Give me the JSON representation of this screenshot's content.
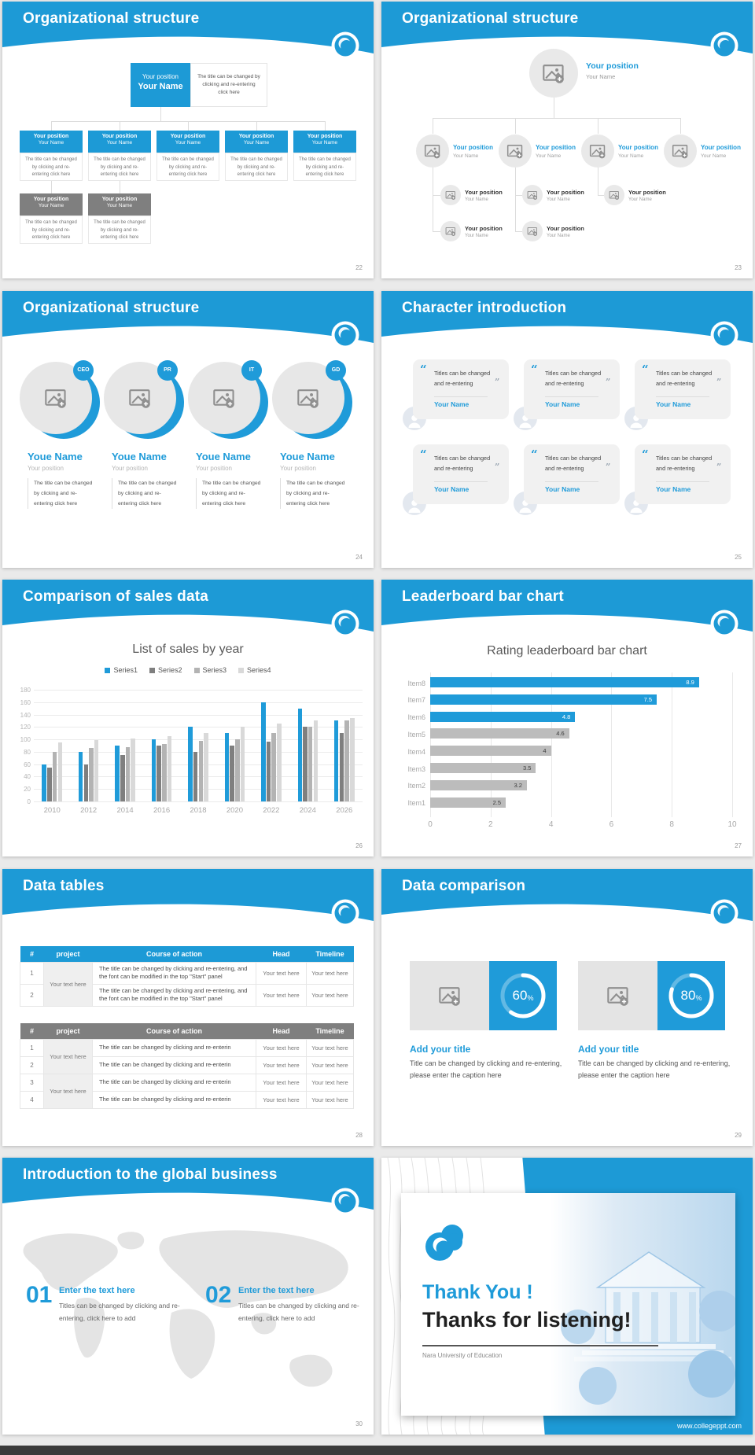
{
  "theme": {
    "blue": "#1d9ad6",
    "chart_blue": "#1f9bd9",
    "gray_box": "#7f7f7f",
    "page_bg": "#eaeaea",
    "footer_bar": "#3b3b3b"
  },
  "icons": {
    "logo-icon": "blue wave swirl in white circle",
    "image-placeholder-icon": "picture with plus badge",
    "person-icon": "user silhouette",
    "quote-open-icon": "“",
    "quote-close-icon": "”"
  },
  "slides": {
    "org_boxes": {
      "title": "Organizational structure",
      "page": "22",
      "root": {
        "position": "Your position",
        "name": "Your Name"
      },
      "root_note": "The title can be changed by clicking and re-entering click here",
      "note": "The title can be changed by clicking and re-entering click here",
      "level1": [
        {
          "position": "Your position",
          "name": "Your Name"
        },
        {
          "position": "Your position",
          "name": "Your Name"
        },
        {
          "position": "Your position",
          "name": "Your Name"
        },
        {
          "position": "Your position",
          "name": "Your Name"
        },
        {
          "position": "Your position",
          "name": "Your Name"
        }
      ],
      "level2": [
        {
          "position": "Your position",
          "name": "Your Name"
        },
        {
          "position": "Your position",
          "name": "Your Name"
        }
      ]
    },
    "org_photos": {
      "title": "Organizational structure",
      "page": "23",
      "root": {
        "position": "Your position",
        "name": "Your Name"
      },
      "level1": [
        {
          "position": "Your position",
          "name": "Your Name"
        },
        {
          "position": "Your position",
          "name": "Your Name"
        },
        {
          "position": "Your position",
          "name": "Your Name"
        },
        {
          "position": "Your position",
          "name": "Your Name"
        }
      ],
      "level2": [
        {
          "position": "Your position",
          "name": "Your Name"
        },
        {
          "position": "Your position",
          "name": "Your Name"
        },
        {
          "position": "Your position",
          "name": "Your Name"
        }
      ],
      "level3": [
        {
          "position": "Your position",
          "name": "Your Name"
        },
        {
          "position": "Your position",
          "name": "Your Name"
        }
      ]
    },
    "org_team": {
      "title": "Organizational structure",
      "page": "24",
      "note": "The title can be changed by clicking and re-entering click here",
      "members": [
        {
          "badge": "CEO",
          "name": "Youe Name",
          "position": "Your position"
        },
        {
          "badge": "PR",
          "name": "Youe Name",
          "position": "Your position"
        },
        {
          "badge": "IT",
          "name": "Youe Name",
          "position": "Your position"
        },
        {
          "badge": "GD",
          "name": "Youe Name",
          "position": "Your position"
        }
      ]
    },
    "characters": {
      "title": "Character introduction",
      "page": "25",
      "quote": "Titles can be changed and re-entering",
      "cards": [
        {
          "name": "Your Name"
        },
        {
          "name": "Your Name"
        },
        {
          "name": "Your Name"
        },
        {
          "name": "Your Name"
        },
        {
          "name": "Your Name"
        },
        {
          "name": "Your Name"
        }
      ]
    },
    "sales": {
      "title": "Comparison of sales data",
      "page": "26"
    },
    "leaderboard": {
      "title": "Leaderboard bar chart",
      "page": "27"
    },
    "tables": {
      "title": "Data tables",
      "page": "28",
      "columns": [
        "#",
        "project",
        "Course of action",
        "Head",
        "Timeline"
      ],
      "table1": {
        "groups": [
          {
            "project": "Your text here",
            "rows": [
              {
                "num": "1",
                "course": "The title can be changed by clicking and re-entering, and the font can be modified in the top \"Start\" panel",
                "head": "Your text here",
                "timeline": "Your text here"
              },
              {
                "num": "2",
                "course": "The title can be changed by clicking and re-entering, and the font can be modified in the top \"Start\" panel",
                "head": "Your text here",
                "timeline": "Your text here"
              }
            ]
          }
        ]
      },
      "table2": {
        "groups": [
          {
            "project": "Your text here",
            "rows": [
              {
                "num": "1",
                "course": "The title can be changed by clicking and re-enterin",
                "head": "Your text here",
                "timeline": "Your text here"
              },
              {
                "num": "2",
                "course": "The title can be changed by clicking and re-enterin",
                "head": "Your text here",
                "timeline": "Your text here"
              }
            ]
          },
          {
            "project": "Your text here",
            "rows": [
              {
                "num": "3",
                "course": "The title can be changed by clicking and re-enterin",
                "head": "Your text here",
                "timeline": "Your text here"
              },
              {
                "num": "4",
                "course": "The title can be changed by clicking and re-enterin",
                "head": "Your text here",
                "timeline": "Your text here"
              }
            ]
          }
        ]
      }
    },
    "comparison": {
      "title": "Data comparison",
      "page": "29",
      "cards": [
        {
          "percent": 60,
          "suffix": "%",
          "title": "Add your title",
          "caption": "Title can be changed by clicking and re-entering, please enter the caption here"
        },
        {
          "percent": 80,
          "suffix": "%",
          "title": "Add your title",
          "caption": "Title can be changed by clicking and re-entering, please enter the caption here"
        }
      ]
    },
    "global": {
      "title": "Introduction to the global business",
      "page": "30",
      "items": [
        {
          "num": "01",
          "title": "Enter the text here",
          "text": "Titles can be changed by clicking and re-entering, click here to add"
        },
        {
          "num": "02",
          "title": "Enter the text here",
          "text": "Titles can be changed by clicking and re-entering, click here to add"
        }
      ]
    },
    "thanks": {
      "heading_blue": "Thank You !",
      "heading_dark": "Thanks for listening!",
      "subtitle": "Nara University of Education",
      "url": "www.collegeppt.com"
    }
  },
  "chart_data": [
    {
      "type": "bar",
      "title": "List of sales by year",
      "categories": [
        "2010",
        "2012",
        "2014",
        "2016",
        "2018",
        "2020",
        "2022",
        "2024",
        "2026"
      ],
      "series": [
        {
          "name": "Series1",
          "color": "#1f9bd9",
          "values": [
            60,
            80,
            90,
            100,
            120,
            110,
            160,
            150,
            130
          ]
        },
        {
          "name": "Series2",
          "color": "#7f7f7f",
          "values": [
            55,
            60,
            75,
            90,
            80,
            90,
            96,
            120,
            110
          ]
        },
        {
          "name": "Series3",
          "color": "#b3b3b3",
          "values": [
            80,
            86,
            88,
            92,
            98,
            100,
            110,
            120,
            130
          ]
        },
        {
          "name": "Series4",
          "color": "#d9d9d9",
          "values": [
            95,
            99,
            102,
            105,
            110,
            120,
            126,
            130,
            135
          ]
        }
      ],
      "xlabel": "",
      "ylabel": "",
      "ylim": [
        0,
        180
      ],
      "ytick": 20,
      "grid": true,
      "legend_position": "top"
    },
    {
      "type": "bar",
      "orientation": "horizontal",
      "title": "Rating leaderboard bar chart",
      "categories": [
        "Item8",
        "Item7",
        "Item6",
        "Item5",
        "Item4",
        "Item3",
        "Item2",
        "Item1"
      ],
      "values": [
        8.9,
        7.5,
        4.8,
        4.6,
        4,
        3.5,
        3.2,
        2.5
      ],
      "colors": [
        "#1f9bd9",
        "#1f9bd9",
        "#1f9bd9",
        "#bcbcbc",
        "#bcbcbc",
        "#bcbcbc",
        "#bcbcbc",
        "#bcbcbc"
      ],
      "xlim": [
        0,
        10
      ],
      "xtick": 2,
      "grid": true
    }
  ]
}
